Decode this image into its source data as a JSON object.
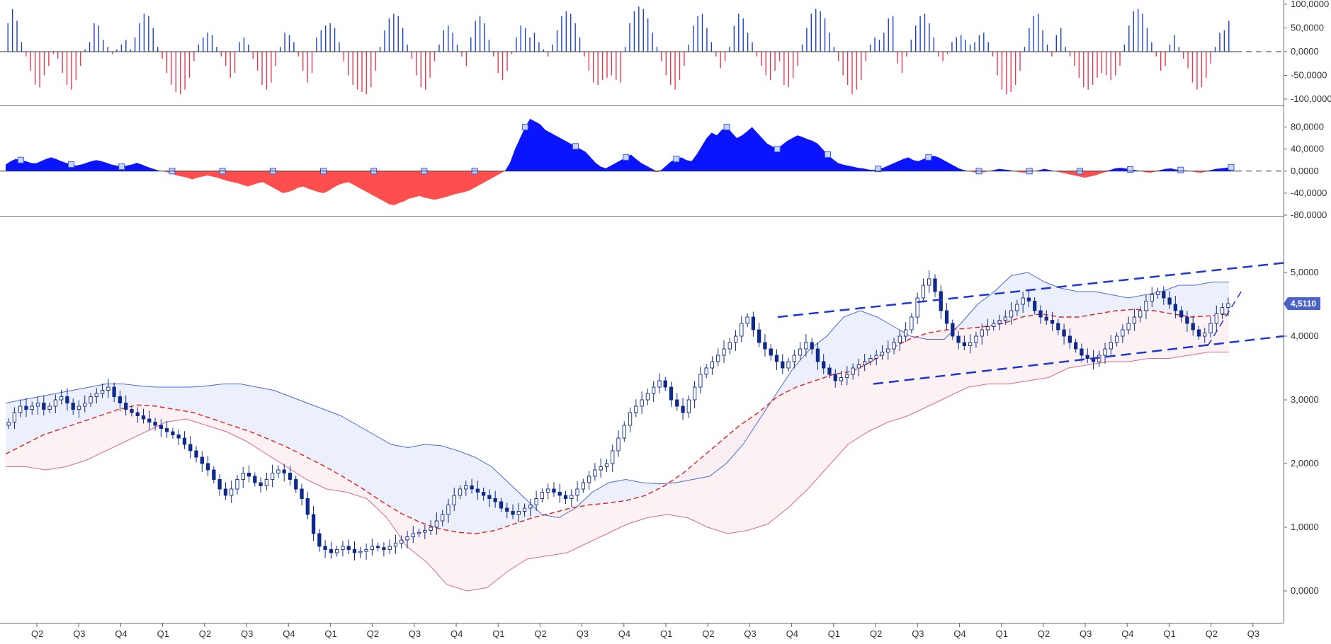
{
  "colors": {
    "up": "#1a3fd0",
    "down": "#e8394f",
    "candle": "#0d2a8c",
    "upper_band": "#4a6ad8",
    "lower_band": "#e06a88",
    "mid_band": "#e0201e",
    "channel": "#1f36d6",
    "area_pos": "#0a14ff",
    "area_neg": "#ff4e4e",
    "price_badge": "#4b62c9"
  },
  "chart_data": [
    {
      "type": "bar",
      "pane": "oscillator-top",
      "ylim": [
        -100000,
        100000
      ],
      "y_ticks": [
        "100,0000",
        "50,0000",
        "0,0000",
        "-50,0000",
        "-100,0000"
      ],
      "y_tick_values": [
        100000,
        50000,
        0,
        -50000,
        -100000
      ],
      "series": [
        {
          "values": [
            60,
            90,
            65,
            20,
            -10,
            -40,
            -70,
            -75,
            -50,
            -30,
            -5,
            -15,
            -45,
            -70,
            -80,
            -60,
            -30,
            5,
            20,
            60,
            55,
            25,
            10,
            -5,
            5,
            15,
            25,
            5,
            30,
            60,
            80,
            75,
            50,
            10,
            -15,
            -45,
            -70,
            -85,
            -90,
            -80,
            -55,
            -20,
            15,
            30,
            40,
            35,
            10,
            -10,
            -30,
            -55,
            -45,
            20,
            30,
            15,
            -15,
            -40,
            -70,
            -80,
            -65,
            -30,
            10,
            40,
            35,
            20,
            -10,
            -40,
            -65,
            -45,
            30,
            45,
            55,
            60,
            50,
            20,
            -20,
            -50,
            -70,
            -80,
            -85,
            -90,
            -75,
            -40,
            10,
            45,
            70,
            80,
            75,
            50,
            15,
            -15,
            -50,
            -75,
            -80,
            -55,
            -20,
            15,
            45,
            55,
            40,
            15,
            -10,
            -30,
            30,
            65,
            75,
            60,
            25,
            -10,
            -45,
            -60,
            -40,
            -5,
            30,
            55,
            50,
            30,
            40,
            20,
            5,
            -10,
            15,
            45,
            75,
            85,
            80,
            60,
            30,
            -10,
            -40,
            -65,
            -70,
            -60,
            -55,
            -50,
            -60,
            -65,
            10,
            60,
            85,
            95,
            90,
            70,
            40,
            10,
            -20,
            -50,
            -70,
            -80,
            -60,
            -30,
            15,
            55,
            75,
            80,
            50,
            20,
            -10,
            -35,
            -20,
            10,
            55,
            80,
            70,
            40,
            20,
            -10,
            -30,
            -50,
            -60,
            -40,
            -20,
            -70,
            -75,
            -55,
            -30,
            15,
            50,
            80,
            90,
            85,
            70,
            40,
            10,
            -20,
            -50,
            -70,
            -90,
            -80,
            -60,
            -20,
            15,
            30,
            25,
            40,
            70,
            75,
            -25,
            -45,
            -10,
            25,
            55,
            75,
            80,
            60,
            30,
            -10,
            -20,
            -5,
            20,
            30,
            35,
            25,
            15,
            20,
            35,
            40,
            20,
            -10,
            -50,
            -80,
            -90,
            -85,
            -70,
            -40,
            10,
            50,
            75,
            80,
            45,
            15,
            -10,
            35,
            50,
            10,
            -10,
            -30,
            -55,
            -75,
            -80,
            -70,
            -55,
            -45,
            -50,
            -60,
            -50,
            -30,
            15,
            55,
            85,
            90,
            80,
            50,
            20,
            -10,
            -40,
            -30,
            15,
            35,
            10,
            -15,
            -35,
            -65,
            -80,
            -75,
            -55,
            -25,
            10,
            40,
            45,
            65
          ]
        }
      ]
    },
    {
      "type": "area",
      "pane": "oscillator-middle",
      "ylim": [
        -80000,
        100000
      ],
      "y_ticks": [
        "80,0000",
        "40,0000",
        "0,0000",
        "-40,0000",
        "-80,0000"
      ],
      "y_tick_values": [
        80000,
        40000,
        0,
        -40000,
        -80000
      ],
      "series": [
        {
          "values": [
            12,
            18,
            22,
            20,
            18,
            15,
            14,
            18,
            22,
            25,
            22,
            18,
            15,
            12,
            10,
            12,
            15,
            18,
            20,
            18,
            15,
            12,
            10,
            8,
            10,
            12,
            15,
            12,
            8,
            5,
            2,
            0,
            -2,
            -5,
            -8,
            -10,
            -12,
            -15,
            -12,
            -10,
            -8,
            -10,
            -12,
            -15,
            -18,
            -20,
            -22,
            -25,
            -28,
            -25,
            -22,
            -20,
            -25,
            -30,
            -35,
            -40,
            -38,
            -35,
            -30,
            -28,
            -32,
            -35,
            -38,
            -40,
            -36,
            -30,
            -25,
            -22,
            -20,
            -25,
            -30,
            -35,
            -40,
            -45,
            -50,
            -55,
            -60,
            -62,
            -58,
            -55,
            -50,
            -48,
            -45,
            -48,
            -50,
            -52,
            -50,
            -48,
            -45,
            -42,
            -40,
            -38,
            -35,
            -30,
            -25,
            -20,
            -15,
            -10,
            -5,
            0,
            15,
            40,
            60,
            80,
            95,
            90,
            85,
            75,
            70,
            65,
            60,
            55,
            50,
            45,
            40,
            35,
            25,
            15,
            8,
            5,
            10,
            15,
            20,
            25,
            30,
            22,
            15,
            10,
            5,
            -2,
            2,
            10,
            18,
            22,
            25,
            20,
            18,
            30,
            45,
            60,
            70,
            65,
            75,
            80,
            70,
            60,
            65,
            72,
            80,
            70,
            60,
            50,
            45,
            40,
            48,
            55,
            60,
            65,
            62,
            58,
            55,
            50,
            40,
            30,
            22,
            15,
            12,
            10,
            8,
            6,
            5,
            3,
            2,
            4,
            6,
            10,
            14,
            18,
            22,
            25,
            20,
            18,
            22,
            25,
            28,
            25,
            20,
            15,
            10,
            5,
            2,
            0,
            -2,
            -3,
            -2,
            0,
            2,
            4,
            3,
            2,
            0,
            -2,
            -3,
            -1,
            0,
            2,
            4,
            2,
            0,
            -2,
            -4,
            -6,
            -8,
            -10,
            -12,
            -10,
            -8,
            -5,
            -2,
            2,
            5,
            6,
            5,
            3,
            2,
            0,
            -2,
            -3,
            -1,
            2,
            4,
            5,
            3,
            2,
            1,
            0,
            -2,
            -3,
            -1,
            2,
            4,
            5,
            6,
            7
          ]
        }
      ]
    },
    {
      "type": "candlestick",
      "pane": "price",
      "ylim": [
        -0.5,
        5.5
      ],
      "y_ticks": [
        "5,0000",
        "4,0000",
        "3,0000",
        "2,0000",
        "1,0000",
        "0,0000"
      ],
      "y_tick_values": [
        5,
        4,
        3,
        2,
        1,
        0
      ],
      "x_ticks": [
        "Q2",
        "Q3",
        "Q4",
        "Q1",
        "Q2",
        "Q3",
        "Q4",
        "Q1",
        "Q2",
        "Q3",
        "Q4",
        "Q1",
        "Q2",
        "Q3",
        "Q4",
        "Q1",
        "Q2",
        "Q3",
        "Q4",
        "Q1",
        "Q2",
        "Q3",
        "Q4",
        "Q1",
        "Q2",
        "Q3",
        "Q4",
        "Q1",
        "Q2",
        "Q3"
      ],
      "close": [
        2.65,
        2.8,
        2.9,
        2.85,
        2.9,
        2.95,
        2.85,
        2.9,
        3.0,
        3.05,
        2.95,
        2.85,
        2.9,
        2.95,
        3.05,
        3.1,
        3.15,
        3.2,
        3.05,
        2.95,
        2.85,
        2.8,
        2.75,
        2.7,
        2.65,
        2.6,
        2.55,
        2.5,
        2.45,
        2.4,
        2.3,
        2.2,
        2.1,
        2.0,
        1.9,
        1.75,
        1.6,
        1.5,
        1.6,
        1.75,
        1.85,
        1.8,
        1.7,
        1.65,
        1.75,
        1.85,
        1.9,
        1.85,
        1.75,
        1.6,
        1.45,
        1.2,
        0.9,
        0.7,
        0.65,
        0.6,
        0.65,
        0.7,
        0.65,
        0.6,
        0.62,
        0.65,
        0.7,
        0.68,
        0.65,
        0.7,
        0.75,
        0.8,
        0.85,
        0.9,
        0.92,
        0.95,
        1.0,
        1.1,
        1.2,
        1.35,
        1.5,
        1.6,
        1.65,
        1.6,
        1.55,
        1.5,
        1.45,
        1.4,
        1.3,
        1.25,
        1.2,
        1.25,
        1.3,
        1.35,
        1.45,
        1.55,
        1.6,
        1.55,
        1.5,
        1.45,
        1.5,
        1.6,
        1.7,
        1.8,
        1.9,
        1.95,
        2.0,
        2.2,
        2.4,
        2.6,
        2.8,
        2.9,
        3.0,
        3.1,
        3.2,
        3.3,
        3.2,
        3.0,
        2.9,
        2.8,
        3.0,
        3.2,
        3.4,
        3.5,
        3.6,
        3.7,
        3.8,
        3.9,
        4.0,
        4.2,
        4.3,
        4.1,
        3.9,
        3.8,
        3.7,
        3.6,
        3.5,
        3.6,
        3.7,
        3.8,
        3.9,
        3.8,
        3.6,
        3.5,
        3.4,
        3.3,
        3.35,
        3.4,
        3.5,
        3.55,
        3.6,
        3.65,
        3.7,
        3.75,
        3.8,
        3.9,
        4.0,
        4.1,
        4.3,
        4.6,
        4.8,
        4.9,
        4.7,
        4.4,
        4.2,
        4.0,
        3.9,
        3.85,
        3.9,
        4.0,
        4.1,
        4.15,
        4.2,
        4.25,
        4.3,
        4.4,
        4.5,
        4.6,
        4.55,
        4.4,
        4.3,
        4.25,
        4.2,
        4.1,
        4.0,
        3.9,
        3.8,
        3.7,
        3.65,
        3.6,
        3.7,
        3.8,
        3.9,
        4.0,
        4.1,
        4.2,
        4.3,
        4.4,
        4.55,
        4.65,
        4.7,
        4.6,
        4.5,
        4.4,
        4.3,
        4.2,
        4.1,
        4.0,
        4.05,
        4.2,
        4.35,
        4.45,
        4.51
      ],
      "upper_band": [
        2.95,
        3.0,
        3.05,
        3.1,
        3.15,
        3.2,
        3.25,
        3.25,
        3.22,
        3.2,
        3.2,
        3.2,
        3.22,
        3.25,
        3.25,
        3.2,
        3.15,
        3.05,
        2.95,
        2.85,
        2.75,
        2.6,
        2.45,
        2.3,
        2.25,
        2.3,
        2.28,
        2.2,
        2.1,
        1.95,
        1.7,
        1.45,
        1.2,
        1.15,
        1.3,
        1.55,
        1.7,
        1.75,
        1.7,
        1.68,
        1.7,
        1.75,
        1.8,
        2.0,
        2.3,
        2.7,
        3.1,
        3.5,
        3.8,
        4.0,
        4.3,
        4.4,
        4.3,
        4.15,
        4.0,
        3.95,
        3.95,
        4.2,
        4.5,
        4.7,
        4.95,
        5.0,
        4.85,
        4.75,
        4.7,
        4.7,
        4.65,
        4.6,
        4.65,
        4.7,
        4.8,
        4.8,
        4.85,
        4.85
      ],
      "middle_band": [
        2.15,
        2.3,
        2.45,
        2.55,
        2.65,
        2.75,
        2.85,
        2.92,
        2.9,
        2.85,
        2.8,
        2.7,
        2.6,
        2.5,
        2.38,
        2.25,
        2.1,
        1.95,
        1.78,
        1.6,
        1.4,
        1.22,
        1.08,
        0.98,
        0.92,
        0.9,
        0.95,
        1.05,
        1.15,
        1.22,
        1.3,
        1.35,
        1.38,
        1.42,
        1.5,
        1.65,
        1.85,
        2.1,
        2.35,
        2.6,
        2.8,
        3.05,
        3.2,
        3.3,
        3.4,
        3.45,
        3.6,
        3.8,
        3.95,
        4.05,
        4.1,
        4.12,
        4.15,
        4.2,
        4.3,
        4.35,
        4.3,
        4.3,
        4.35,
        4.4,
        4.42,
        4.4,
        4.35,
        4.3,
        4.32,
        4.35
      ],
      "lower_band": [
        1.95,
        1.95,
        1.9,
        1.95,
        2.05,
        2.2,
        2.35,
        2.5,
        2.65,
        2.7,
        2.6,
        2.5,
        2.35,
        2.15,
        1.95,
        1.75,
        1.6,
        1.55,
        1.45,
        1.15,
        0.7,
        0.45,
        0.1,
        0.0,
        0.05,
        0.3,
        0.5,
        0.55,
        0.6,
        0.75,
        0.9,
        1.05,
        1.15,
        1.2,
        1.15,
        1.0,
        0.9,
        0.95,
        1.05,
        1.3,
        1.6,
        1.95,
        2.3,
        2.5,
        2.65,
        2.75,
        2.9,
        3.05,
        3.2,
        3.25,
        3.25,
        3.3,
        3.35,
        3.5,
        3.55,
        3.6,
        3.6,
        3.65,
        3.65,
        3.7,
        3.75,
        3.75
      ],
      "channel_upper": [
        [
          4.3,
          0.0
        ],
        [
          5.15,
          1.0
        ]
      ],
      "channel_lower": [
        [
          3.25,
          0.0
        ],
        [
          4.0,
          1.0
        ]
      ],
      "last_price_label": "4,5110",
      "last_price": 4.511
    }
  ]
}
